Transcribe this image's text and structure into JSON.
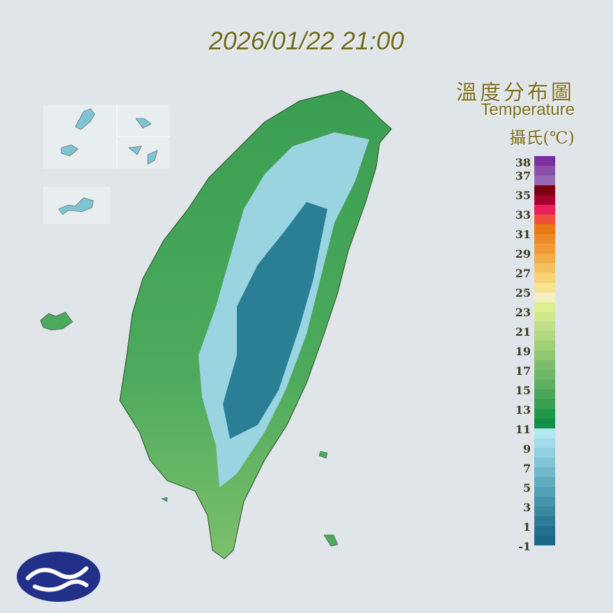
{
  "timestamp": "2026/01/22 21:00",
  "title_zh": "溫度分布圖",
  "title_en": "Temperature",
  "unit": "攝氏(℃)",
  "legend": {
    "tick_labels": [
      "38",
      "37",
      "35",
      "33",
      "31",
      "29",
      "27",
      "25",
      "23",
      "21",
      "19",
      "17",
      "15",
      "13",
      "11",
      "9",
      "7",
      "5",
      "3",
      "1",
      "-1"
    ],
    "colors": [
      "#7b2fa0",
      "#8a4fa8",
      "#9a67b5",
      "#7a0010",
      "#a8002e",
      "#e8205a",
      "#f0503a",
      "#e67a10",
      "#ee8a28",
      "#f09a38",
      "#f2ac48",
      "#f5c060",
      "#f7d478",
      "#f8e390",
      "#f2f0c0",
      "#dcef90",
      "#d0e88a",
      "#c0df88",
      "#b0d880",
      "#a0d078",
      "#90c870",
      "#7cbe6c",
      "#6cb868",
      "#5cb060",
      "#48a858",
      "#38a050",
      "#209848",
      "#109048",
      "#b0e8f0",
      "#a0dce8",
      "#90d0e0",
      "#80c4d8",
      "#70b8cc",
      "#60acc0",
      "#50a0b8",
      "#4494ac",
      "#3888a0",
      "#2c7c98",
      "#227090",
      "#1c6888"
    ]
  },
  "map_colors": {
    "lowland": "#4caa5c",
    "south": "#7cc06c",
    "mountain_high": "#1f6f86",
    "mountain_mid": "#7ec4d4",
    "snowline": "#b8e6ee",
    "background": "#dfe5e8"
  },
  "logo": "cwa-logo"
}
